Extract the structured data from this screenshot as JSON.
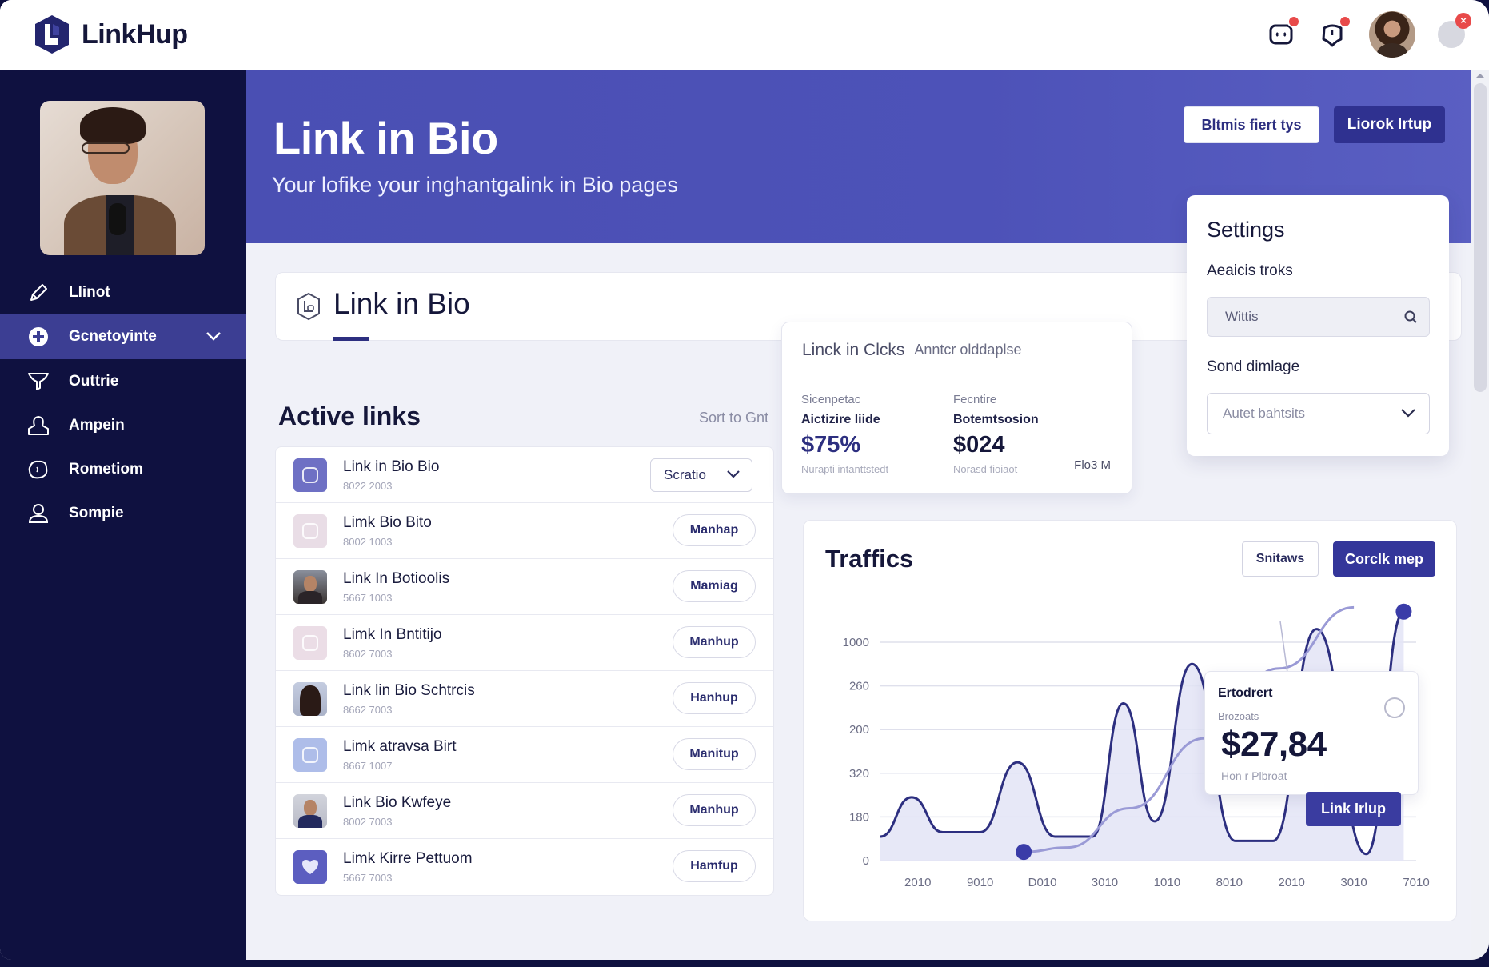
{
  "app": {
    "name": "LinkHup",
    "colors": {
      "brand": "#2d2f80",
      "sidebar": "#0f1140",
      "hero": "#4b4fb5",
      "accent": "#3a3ca0",
      "badge": "#e84a4a"
    }
  },
  "topbar": {
    "icons": [
      {
        "name": "chat-icon",
        "badge": true
      },
      {
        "name": "notification-icon",
        "badge": true
      },
      {
        "name": "user-avatar",
        "badge": false
      },
      {
        "name": "account-icon",
        "badge": true
      }
    ]
  },
  "sidebar": {
    "items": [
      {
        "label": "Llinot",
        "icon": "pencil-icon",
        "active": false
      },
      {
        "label": "Gcnetoyinte",
        "icon": "plus-circle-icon",
        "active": true,
        "expandable": true
      },
      {
        "label": "Outtrie",
        "icon": "filter-icon",
        "active": false
      },
      {
        "label": "Ampein",
        "icon": "user-icon",
        "active": false
      },
      {
        "label": "Rometiom",
        "icon": "globe-icon",
        "active": false
      },
      {
        "label": "Sompie",
        "icon": "profile-icon",
        "active": false
      }
    ]
  },
  "hero": {
    "title": "Link in Bio",
    "subtitle": "Your lofike your inghantgalink in Bio pages",
    "secondary_button": "Bltmis fiert tys",
    "primary_button": "Liorok Irtup"
  },
  "tabcard": {
    "title": "Link in Bio"
  },
  "active_links": {
    "title": "Active links",
    "sort_label": "Sort to Gnt",
    "rows": [
      {
        "name": "Link in Bio Bio",
        "meta": "8022 2003",
        "thumb": "icon",
        "thumb_color": "#6e70c4",
        "action": "Scratio",
        "action_type": "select"
      },
      {
        "name": "Limk Bio Bito",
        "meta": "8002 1003",
        "thumb": "icon",
        "thumb_color": "#e9dde6",
        "action": "Manhap",
        "action_type": "button"
      },
      {
        "name": "Link In Botioolis",
        "meta": "5667 1003",
        "thumb": "photo-man",
        "thumb_color": "#4a4446",
        "action": "Mamiag",
        "action_type": "button"
      },
      {
        "name": "Limk In Bntitijo",
        "meta": "8602 7003",
        "thumb": "icon",
        "thumb_color": "#ebdde6",
        "action": "Manhup",
        "action_type": "button"
      },
      {
        "name": "Link lin Bio Schtrcis",
        "meta": "8662 7003",
        "thumb": "photo-woman",
        "thumb_color": "#b4bcd2",
        "action": "Hanhup",
        "action_type": "button"
      },
      {
        "name": "Limk atravsa Birt",
        "meta": "8667 1007",
        "thumb": "icon",
        "thumb_color": "#aebde9",
        "action": "Manitup",
        "action_type": "button"
      },
      {
        "name": "Link Bio Kwfeye",
        "meta": "8002 7003",
        "thumb": "photo-man2",
        "thumb_color": "#c4c6d2",
        "action": "Manhup",
        "action_type": "button"
      },
      {
        "name": "Limk Kirre Pettuom",
        "meta": "5667 7003",
        "thumb": "heart",
        "thumb_color": "#5c5ec0",
        "action": "Hamfup",
        "action_type": "button"
      }
    ]
  },
  "stats_card": {
    "title": "Linck in Clcks",
    "subtitle": "Anntcr olddaplse",
    "columns": [
      {
        "caption": "Sicenpetac",
        "label": "Aictizire liide",
        "value": "$75%",
        "value_color": "#2d2f80",
        "foot": "Nurapti intanttstedt"
      },
      {
        "caption": "Fecntire",
        "label": "Botemtsosion",
        "value": "$024",
        "value_color": "#15173a",
        "foot": "Norasd fioiaot"
      }
    ],
    "corner": "Flo3 M"
  },
  "settings": {
    "title": "Settings",
    "label1": "Aeaicis troks",
    "search_value": "Wittis",
    "label2": "Sond dimlage",
    "select_value": "Autet bahtsits"
  },
  "traffic": {
    "title": "Traffics",
    "secondary_button": "Snitaws",
    "primary_button": "Corclk mep",
    "tooltip": {
      "title": "Ertodrert",
      "subtitle": "Brozoats",
      "value": "$27,84",
      "foot": "Hon r Plbroat",
      "button": "Link Irlup"
    }
  },
  "chart_data": {
    "type": "area",
    "title": "Traffics",
    "xlabel": "",
    "ylabel": "",
    "y_tick_labels": [
      "0",
      "180",
      "320",
      "200",
      "260",
      "1000"
    ],
    "x_tick_labels": [
      "2010",
      "9010",
      "D010",
      "3010",
      "1010",
      "8010",
      "2010",
      "3010",
      "7010"
    ],
    "grid": true,
    "legend": "none",
    "series": [
      {
        "name": "traffic-main",
        "style": "area-line",
        "color": "#2d2f80",
        "points": [
          [
            0,
            0.55
          ],
          [
            0.5,
            1.45
          ],
          [
            1.0,
            0.65
          ],
          [
            1.6,
            0.65
          ],
          [
            2.2,
            2.25
          ],
          [
            2.8,
            0.55
          ],
          [
            3.4,
            0.55
          ],
          [
            3.9,
            3.6
          ],
          [
            4.4,
            0.9
          ],
          [
            5.0,
            4.5
          ],
          [
            5.7,
            0.45
          ],
          [
            6.3,
            0.45
          ],
          [
            7.0,
            5.3
          ],
          [
            7.8,
            0.15
          ],
          [
            8.4,
            5.7
          ]
        ]
      },
      {
        "name": "trend",
        "style": "line",
        "color": "#9a9ad6",
        "points": [
          [
            2.3,
            0.2
          ],
          [
            3.0,
            0.3
          ],
          [
            4.0,
            1.2
          ],
          [
            5.2,
            2.8
          ],
          [
            6.4,
            4.4
          ],
          [
            7.6,
            5.8
          ]
        ]
      }
    ],
    "highlight_points": [
      {
        "x": 2.3,
        "y": 0.2,
        "label": "start"
      },
      {
        "x": 8.4,
        "y": 5.7,
        "label": "peak"
      }
    ]
  }
}
